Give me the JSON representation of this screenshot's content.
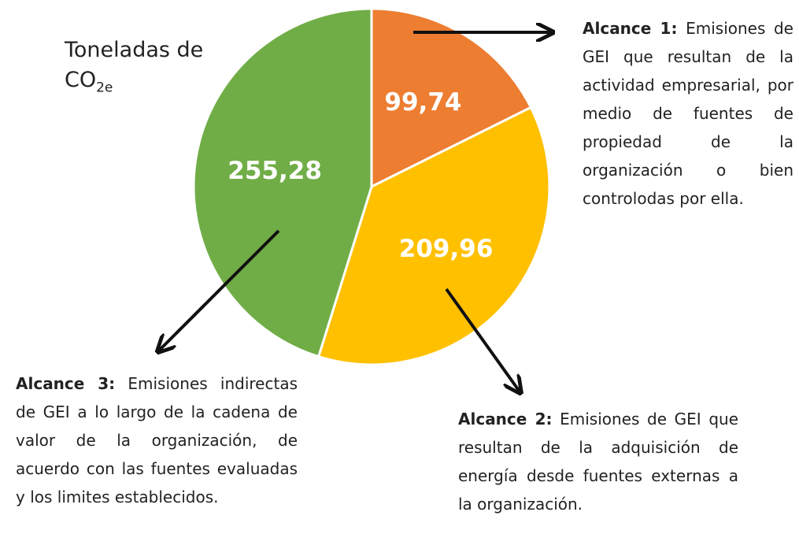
{
  "chart_data": {
    "type": "pie",
    "title": {
      "text": "Toneladas de",
      "formula": "CO",
      "subscript": "2e"
    },
    "categories": [
      "Alcance 1",
      "Alcance 2",
      "Alcance 3"
    ],
    "values": [
      99.74,
      209.96,
      255.28
    ],
    "value_labels": [
      "99,74",
      "209,96",
      "255,28"
    ],
    "colors": [
      "#ed7d31",
      "#ffc000",
      "#70ad47"
    ],
    "annotations": [
      {
        "label": "Alcance 1:",
        "text": "Emisiones de GEI que resultan de la actividad empresarial, por medio de fuentes de propiedad de la organización o bien controlodas por ella."
      },
      {
        "label": "Alcance 2:",
        "text": "Emisiones de GEI que resultan de la adquisición de energía desde fuentes externas a la organización."
      },
      {
        "label": "Alcance 3:",
        "text": "Emisiones indirectas de GEI a lo largo de la cadena de valor de la organización, de acuerdo con las fuentes evaluadas y los limites establecidos."
      }
    ]
  }
}
